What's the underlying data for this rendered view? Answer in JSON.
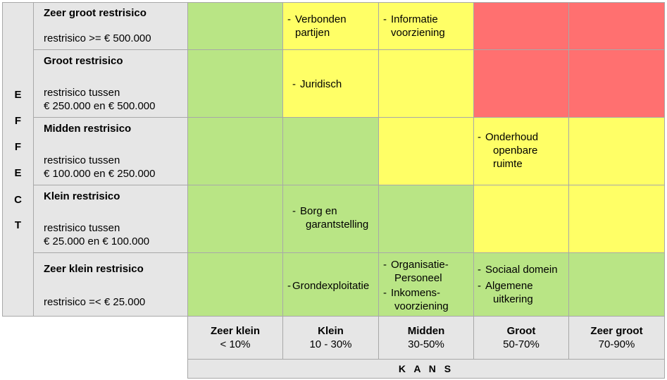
{
  "effect_letters": [
    "E",
    "F",
    "F",
    "E",
    "C",
    "T"
  ],
  "rows": [
    {
      "title": "Zeer groot restrisico",
      "desc1": "restrisico >= € 500.000",
      "desc2": ""
    },
    {
      "title": "Groot restrisico",
      "desc1": "restrisico tussen",
      "desc2": "€ 250.000 en € 500.000"
    },
    {
      "title": "Midden restrisico",
      "desc1": "restrisico tussen",
      "desc2": "€ 100.000 en € 250.000"
    },
    {
      "title": "Klein restrisico",
      "desc1": "restrisico tussen",
      "desc2": "€ 25.000 en € 100.000"
    },
    {
      "title": "Zeer klein restrisico",
      "desc1": "restrisico  =< € 25.000",
      "desc2": ""
    }
  ],
  "columns": [
    {
      "title": "Zeer klein",
      "range": "< 10%"
    },
    {
      "title": "Klein",
      "range": "10 - 30%"
    },
    {
      "title": "Midden",
      "range": "30-50%"
    },
    {
      "title": "Groot",
      "range": "50-70%"
    },
    {
      "title": "Zeer groot",
      "range": "70-90%"
    }
  ],
  "axis_x_label": "K A N S",
  "colors": {
    "green": "#b9e585",
    "yellow": "#ffff66",
    "red": "#ff7070",
    "grey": "#e6e6e6"
  },
  "items": {
    "verbonden": {
      "l1": "Verbonden",
      "l2": "partijen"
    },
    "informatie": {
      "l1": "Informatie",
      "l2": "voorziening"
    },
    "juridisch": {
      "l1": "Juridisch"
    },
    "onderhoud": {
      "l1": "Onderhoud",
      "l2": "openbare",
      "l3": "ruimte"
    },
    "borg": {
      "l1": "Borg en",
      "l2": "garantstelling"
    },
    "grondexploitatie": {
      "l1": "Grondexploitatie"
    },
    "organisatie": {
      "l1": "Organisatie-",
      "l2": "Personeel"
    },
    "inkomens": {
      "l1": "Inkomens-",
      "l2": "voorziening"
    },
    "sociaal": {
      "l1": "Sociaal domein"
    },
    "algemene": {
      "l1": "Algemene",
      "l2": "uitkering"
    }
  }
}
